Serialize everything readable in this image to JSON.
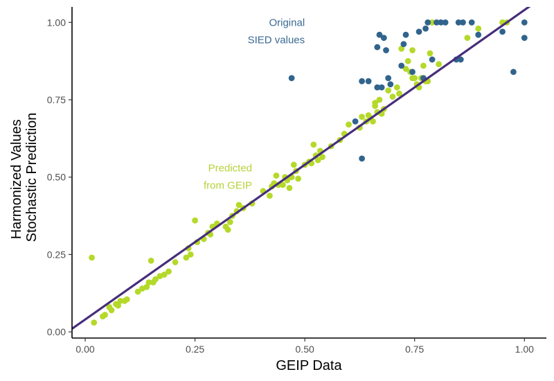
{
  "chart_data": {
    "type": "scatter",
    "xlabel": "GEIP Data",
    "ylabel": [
      "Harmonized Values",
      "Stochastic Prediction"
    ],
    "xlim": [
      -0.03,
      1.05
    ],
    "ylim": [
      -0.02,
      1.05
    ],
    "xticks": [
      0,
      0.25,
      0.5,
      0.75,
      1
    ],
    "xtick_labels": [
      "0.00",
      "0.25",
      "0.50",
      "0.75",
      "1.00"
    ],
    "yticks": [
      0,
      0.25,
      0.5,
      0.75,
      1
    ],
    "ytick_labels": [
      "0.00",
      "0.25",
      "0.50",
      "0.75",
      "1.00"
    ],
    "grid": false,
    "reference_line": {
      "slope": 1,
      "intercept": 0.04,
      "color": "#472d7b"
    },
    "annotations": [
      {
        "lines": [
          "Original",
          "SIED values"
        ],
        "x": 0.5,
        "y": 1.0,
        "color": "#3b6a94",
        "anchor": "end"
      },
      {
        "lines": [
          "Predicted",
          "from GEIP"
        ],
        "x": 0.38,
        "y": 0.53,
        "color": "#b5d23a",
        "anchor": "end"
      }
    ],
    "series": [
      {
        "color": "#b5d92a",
        "points": [
          [
            0.015,
            0.24
          ],
          [
            0.02,
            0.03
          ],
          [
            0.04,
            0.05
          ],
          [
            0.045,
            0.055
          ],
          [
            0.055,
            0.08
          ],
          [
            0.06,
            0.07
          ],
          [
            0.07,
            0.09
          ],
          [
            0.075,
            0.085
          ],
          [
            0.08,
            0.1
          ],
          [
            0.09,
            0.1
          ],
          [
            0.095,
            0.105
          ],
          [
            0.12,
            0.13
          ],
          [
            0.13,
            0.14
          ],
          [
            0.14,
            0.145
          ],
          [
            0.145,
            0.16
          ],
          [
            0.15,
            0.23
          ],
          [
            0.155,
            0.16
          ],
          [
            0.16,
            0.17
          ],
          [
            0.17,
            0.18
          ],
          [
            0.18,
            0.185
          ],
          [
            0.19,
            0.195
          ],
          [
            0.205,
            0.225
          ],
          [
            0.23,
            0.24
          ],
          [
            0.235,
            0.27
          ],
          [
            0.24,
            0.25
          ],
          [
            0.25,
            0.36
          ],
          [
            0.255,
            0.29
          ],
          [
            0.27,
            0.3
          ],
          [
            0.28,
            0.32
          ],
          [
            0.285,
            0.315
          ],
          [
            0.29,
            0.34
          ],
          [
            0.3,
            0.35
          ],
          [
            0.32,
            0.34
          ],
          [
            0.325,
            0.33
          ],
          [
            0.33,
            0.355
          ],
          [
            0.335,
            0.375
          ],
          [
            0.345,
            0.39
          ],
          [
            0.35,
            0.41
          ],
          [
            0.36,
            0.4
          ],
          [
            0.38,
            0.415
          ],
          [
            0.405,
            0.455
          ],
          [
            0.42,
            0.44
          ],
          [
            0.425,
            0.47
          ],
          [
            0.43,
            0.48
          ],
          [
            0.435,
            0.505
          ],
          [
            0.44,
            0.475
          ],
          [
            0.45,
            0.475
          ],
          [
            0.455,
            0.5
          ],
          [
            0.46,
            0.49
          ],
          [
            0.465,
            0.465
          ],
          [
            0.47,
            0.5
          ],
          [
            0.475,
            0.54
          ],
          [
            0.48,
            0.52
          ],
          [
            0.485,
            0.495
          ],
          [
            0.5,
            0.54
          ],
          [
            0.51,
            0.55
          ],
          [
            0.515,
            0.545
          ],
          [
            0.52,
            0.605
          ],
          [
            0.525,
            0.57
          ],
          [
            0.53,
            0.555
          ],
          [
            0.535,
            0.585
          ],
          [
            0.54,
            0.565
          ],
          [
            0.56,
            0.6
          ],
          [
            0.58,
            0.62
          ],
          [
            0.59,
            0.64
          ],
          [
            0.6,
            0.67
          ],
          [
            0.625,
            0.66
          ],
          [
            0.63,
            0.695
          ],
          [
            0.64,
            0.68
          ],
          [
            0.645,
            0.7
          ],
          [
            0.65,
            0.69
          ],
          [
            0.655,
            0.68
          ],
          [
            0.66,
            0.74
          ],
          [
            0.665,
            0.71
          ],
          [
            0.67,
            0.75
          ],
          [
            0.675,
            0.705
          ],
          [
            0.68,
            0.72
          ],
          [
            0.69,
            0.78
          ],
          [
            0.7,
            0.76
          ],
          [
            0.71,
            0.79
          ],
          [
            0.72,
            0.915
          ],
          [
            0.73,
            0.85
          ],
          [
            0.735,
            0.875
          ],
          [
            0.74,
            0.84
          ],
          [
            0.745,
            0.82
          ],
          [
            0.75,
            0.82
          ],
          [
            0.755,
            0.8
          ],
          [
            0.76,
            0.79
          ],
          [
            0.765,
            0.82
          ],
          [
            0.77,
            0.86
          ],
          [
            0.775,
            0.81
          ],
          [
            0.78,
            0.81
          ],
          [
            0.785,
            0.9
          ],
          [
            0.79,
            1.0
          ],
          [
            0.805,
            0.865
          ],
          [
            0.87,
            0.95
          ],
          [
            0.895,
            0.98
          ],
          [
            0.95,
            1.0
          ],
          [
            0.96,
            1.0
          ],
          [
            0.745,
            0.91
          ],
          [
            0.715,
            0.77
          ],
          [
            0.66,
            0.73
          ]
        ]
      },
      {
        "color": "#31648c",
        "points": [
          [
            0.47,
            0.82
          ],
          [
            0.615,
            0.68
          ],
          [
            0.63,
            0.81
          ],
          [
            0.63,
            0.56
          ],
          [
            0.645,
            0.81
          ],
          [
            0.665,
            0.79
          ],
          [
            0.665,
            0.92
          ],
          [
            0.67,
            0.96
          ],
          [
            0.675,
            0.79
          ],
          [
            0.68,
            0.95
          ],
          [
            0.685,
            0.91
          ],
          [
            0.69,
            0.82
          ],
          [
            0.695,
            0.8
          ],
          [
            0.72,
            0.86
          ],
          [
            0.725,
            0.93
          ],
          [
            0.73,
            0.96
          ],
          [
            0.745,
            0.84
          ],
          [
            0.76,
            0.97
          ],
          [
            0.77,
            0.82
          ],
          [
            0.775,
            0.98
          ],
          [
            0.78,
            1.0
          ],
          [
            0.79,
            0.88
          ],
          [
            0.8,
            1.0
          ],
          [
            0.81,
            1.0
          ],
          [
            0.82,
            1.0
          ],
          [
            0.845,
            0.88
          ],
          [
            0.85,
            1.0
          ],
          [
            0.855,
            0.88
          ],
          [
            0.86,
            1.0
          ],
          [
            0.88,
            1.0
          ],
          [
            0.895,
            0.96
          ],
          [
            0.95,
            0.97
          ],
          [
            0.975,
            0.84
          ],
          [
            1.0,
            0.95
          ],
          [
            1.0,
            1.0
          ]
        ]
      }
    ]
  }
}
